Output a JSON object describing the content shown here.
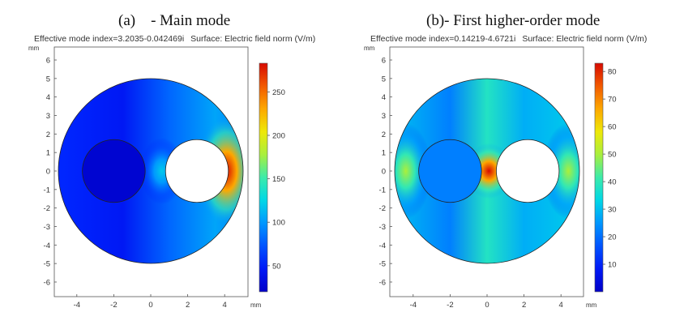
{
  "figure": {
    "caption_a": "(a)    - Main mode",
    "caption_b": "(b)- First higher-order mode"
  },
  "chart_data": [
    {
      "type": "heatmap",
      "title": "Effective mode index=3.2035-0.042469i",
      "subtitle": "Surface: Electric field norm (V/m)",
      "xlabel": "mm",
      "ylabel": "mm",
      "xlim": [
        -5.3,
        5.3
      ],
      "ylim": [
        -6.5,
        6.5
      ],
      "xticks": [
        -4,
        -2,
        0,
        2,
        4
      ],
      "yticks": [
        6,
        5,
        4,
        3,
        2,
        1,
        0,
        -1,
        -2,
        -3,
        -4,
        -5,
        -6
      ],
      "colorbar": {
        "min": 20,
        "max": 283,
        "ticks": [
          50,
          100,
          150,
          200,
          250
        ]
      },
      "geometry": {
        "outer_circle": {
          "cx": 0,
          "cy": 0,
          "r": 5
        },
        "dielectric_rod": {
          "cx": -2,
          "cy": 0,
          "r": 1.7
        },
        "hole": {
          "cx": 2.5,
          "cy": 0,
          "r": 1.7
        }
      },
      "hotspots": [
        {
          "x": 4.1,
          "y": 0,
          "value": 283
        },
        {
          "x": 0.6,
          "y": 0,
          "value": 120
        }
      ]
    },
    {
      "type": "heatmap",
      "title": "Effective mode index=0.14219-4.6721i",
      "subtitle": "Surface: Electric field norm (V/m)",
      "xlabel": "mm",
      "ylabel": "mm",
      "xlim": [
        -5.3,
        5.3
      ],
      "ylim": [
        -6.5,
        6.5
      ],
      "xticks": [
        -4,
        -2,
        0,
        2,
        4
      ],
      "yticks": [
        6,
        5,
        4,
        3,
        2,
        1,
        0,
        -1,
        -2,
        -3,
        -4,
        -5,
        -6
      ],
      "colorbar": {
        "min": 0,
        "max": 83,
        "ticks": [
          10,
          20,
          30,
          40,
          50,
          60,
          70,
          80
        ]
      },
      "geometry": {
        "outer_circle": {
          "cx": 0,
          "cy": 0,
          "r": 5
        },
        "dielectric_rod": {
          "cx": -2,
          "cy": 0,
          "r": 1.7
        },
        "hole": {
          "cx": 2.2,
          "cy": 0,
          "r": 1.7
        }
      },
      "hotspots": [
        {
          "x": 0.1,
          "y": 0,
          "value": 83
        },
        {
          "x": -4.4,
          "y": 0,
          "value": 50
        },
        {
          "x": 4.4,
          "y": 0,
          "value": 50
        }
      ]
    }
  ]
}
